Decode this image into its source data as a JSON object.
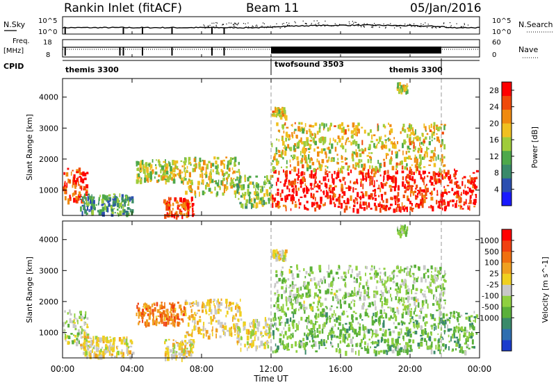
{
  "header": {
    "title": "Rankin Inlet (fitACF)",
    "beam": "Beam 11",
    "date": "05/Jan/2016"
  },
  "summary_panels": {
    "nsky": {
      "left_label": "N.Sky",
      "left_ticks": [
        "10^5",
        "10^0"
      ],
      "right_ticks": [
        "10^5",
        "10^0"
      ],
      "right_label": "N.Search"
    },
    "freq": {
      "left_label_line1": "Freq.",
      "left_label_line2": "[MHz]",
      "left_ticks": [
        "18",
        "8"
      ],
      "right_ticks": [
        "60",
        "0"
      ],
      "right_label": "Nave"
    },
    "cpid": {
      "label": "CPID",
      "segments": [
        {
          "name": "themis 3300",
          "start_h": 0,
          "end_h": 12
        },
        {
          "name": "twofsound 3503",
          "start_h": 12,
          "end_h": 21.8
        },
        {
          "name": "themis 3300",
          "start_h": 21.8,
          "end_h": 24
        }
      ]
    }
  },
  "x_axis": {
    "label": "Time UT",
    "ticks": [
      "00:00",
      "04:00",
      "08:00",
      "12:00",
      "16:00",
      "20:00",
      "00:00"
    ],
    "range_hours": [
      0,
      24
    ]
  },
  "colors": {
    "power_scale": [
      "#1a1aff",
      "#2c4fb0",
      "#3a8a6a",
      "#4ea84a",
      "#9fcc3a",
      "#f0c020",
      "#f08a10",
      "#f04a0a",
      "#ff0000"
    ],
    "velocity_scale": [
      "#1a3ccc",
      "#2f6fb0",
      "#3a8a6a",
      "#5ab03a",
      "#8fd040",
      "#c8c8c8",
      "#f0d020",
      "#f0a020",
      "#f07010",
      "#f04010",
      "#ff0000"
    ]
  },
  "chart_data": [
    {
      "type": "heatmap",
      "name_ref": "power",
      "ylabel": "Slant Range [km]",
      "ylim": [
        180,
        4600
      ],
      "yticks": [
        1000,
        2000,
        3000,
        4000
      ],
      "colorbar": {
        "label": "Power [dB]",
        "ticks": [
          "4",
          "8",
          "12",
          "16",
          "20",
          "24",
          "28"
        ],
        "range": [
          0,
          30
        ]
      },
      "regions": [
        {
          "t0": 0.0,
          "t1": 1.4,
          "r0": 700,
          "r1": 1750,
          "value": 26
        },
        {
          "t0": 1.0,
          "t1": 4.0,
          "r0": 250,
          "r1": 900,
          "value": 10
        },
        {
          "t0": 4.2,
          "t1": 7.0,
          "r0": 1300,
          "r1": 2000,
          "value": 16
        },
        {
          "t0": 5.8,
          "t1": 7.5,
          "r0": 200,
          "r1": 800,
          "value": 26
        },
        {
          "t0": 7.0,
          "t1": 10.2,
          "r0": 900,
          "r1": 2100,
          "value": 17
        },
        {
          "t0": 10.0,
          "t1": 12.0,
          "r0": 500,
          "r1": 1500,
          "value": 14
        },
        {
          "t0": 12.0,
          "t1": 23.8,
          "r0": 400,
          "r1": 1700,
          "value": 28
        },
        {
          "t0": 12.0,
          "t1": 22.0,
          "r0": 1700,
          "r1": 3200,
          "value": 18
        },
        {
          "t0": 12.0,
          "t1": 12.8,
          "r0": 3400,
          "r1": 3700,
          "value": 18
        },
        {
          "t0": 19.2,
          "t1": 19.8,
          "r0": 4200,
          "r1": 4500,
          "value": 16
        }
      ]
    },
    {
      "type": "heatmap",
      "name_ref": "velocity",
      "ylabel": "Slant Range [km]",
      "ylim": [
        180,
        4600
      ],
      "yticks": [
        1000,
        2000,
        3000,
        4000
      ],
      "colorbar": {
        "label": "Velocity [m s^-1]",
        "ticks": [
          "1000",
          "500",
          "100",
          "25",
          "-25",
          "-100",
          "-500",
          "-1000"
        ],
        "range": [
          -1000,
          1000
        ]
      },
      "regions": [
        {
          "t0": 0.0,
          "t1": 1.4,
          "r0": 700,
          "r1": 1750,
          "value": -100
        },
        {
          "t0": 1.0,
          "t1": 4.0,
          "r0": 250,
          "r1": 900,
          "value": 100
        },
        {
          "t0": 4.2,
          "t1": 7.0,
          "r0": 1300,
          "r1": 2000,
          "value": 500
        },
        {
          "t0": 5.8,
          "t1": 7.5,
          "r0": 200,
          "r1": 800,
          "value": 100
        },
        {
          "t0": 7.0,
          "t1": 10.2,
          "r0": 900,
          "r1": 2100,
          "value": 200
        },
        {
          "t0": 10.0,
          "t1": 12.0,
          "r0": 500,
          "r1": 1500,
          "value": 50
        },
        {
          "t0": 12.0,
          "t1": 23.8,
          "r0": 400,
          "r1": 1700,
          "value": -300
        },
        {
          "t0": 12.0,
          "t1": 22.0,
          "r0": 1700,
          "r1": 3200,
          "value": -150
        },
        {
          "t0": 12.0,
          "t1": 12.8,
          "r0": 3400,
          "r1": 3700,
          "value": 100
        },
        {
          "t0": 19.2,
          "t1": 19.8,
          "r0": 4200,
          "r1": 4500,
          "value": -200
        }
      ]
    }
  ]
}
